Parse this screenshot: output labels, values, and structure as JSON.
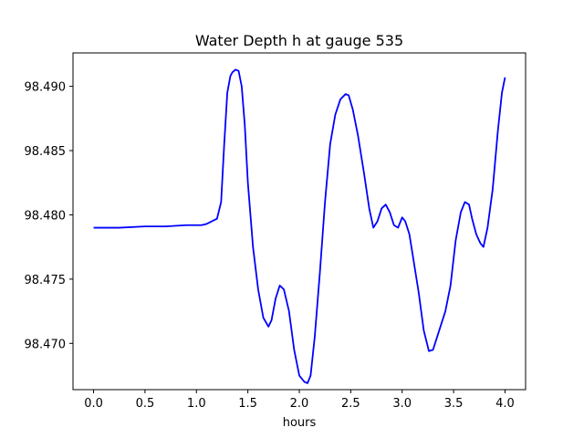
{
  "chart_data": {
    "type": "line",
    "title": "Water Depth h at gauge 535",
    "xlabel": "hours",
    "ylabel": "",
    "xlim": [
      -0.2,
      4.2
    ],
    "ylim": [
      98.4664,
      98.4926
    ],
    "xticks": [
      0.0,
      0.5,
      1.0,
      1.5,
      2.0,
      2.5,
      3.0,
      3.5,
      4.0
    ],
    "xtick_labels": [
      "0.0",
      "0.5",
      "1.0",
      "1.5",
      "2.0",
      "2.5",
      "3.0",
      "3.5",
      "4.0"
    ],
    "yticks": [
      98.47,
      98.475,
      98.48,
      98.485,
      98.49
    ],
    "ytick_labels": [
      "98.470",
      "98.475",
      "98.480",
      "98.485",
      "98.490"
    ],
    "grid": false,
    "series": [
      {
        "color": "#0000ff",
        "x": [
          0.0,
          0.25,
          0.5,
          0.7,
          0.9,
          1.05,
          1.1,
          1.2,
          1.24,
          1.27,
          1.3,
          1.33,
          1.35,
          1.38,
          1.41,
          1.44,
          1.47,
          1.5,
          1.55,
          1.6,
          1.65,
          1.7,
          1.73,
          1.77,
          1.81,
          1.85,
          1.9,
          1.95,
          2.0,
          2.05,
          2.08,
          2.11,
          2.15,
          2.2,
          2.25,
          2.3,
          2.35,
          2.4,
          2.45,
          2.48,
          2.52,
          2.57,
          2.63,
          2.68,
          2.72,
          2.76,
          2.8,
          2.84,
          2.88,
          2.92,
          2.96,
          3.0,
          3.03,
          3.07,
          3.11,
          3.16,
          3.21,
          3.26,
          3.3,
          3.36,
          3.42,
          3.47,
          3.52,
          3.57,
          3.61,
          3.65,
          3.68,
          3.72,
          3.76,
          3.79,
          3.83,
          3.88,
          3.93,
          3.97,
          4.0
        ],
        "values": [
          98.479,
          98.479,
          98.4791,
          98.4791,
          98.4792,
          98.4792,
          98.4793,
          98.4797,
          98.481,
          98.4855,
          98.4895,
          98.4908,
          98.4911,
          98.4913,
          98.4912,
          98.49,
          98.487,
          98.4825,
          98.4775,
          98.4742,
          98.472,
          98.4713,
          98.4718,
          98.4735,
          98.4745,
          98.4742,
          98.4725,
          98.4695,
          98.4675,
          98.467,
          98.4669,
          98.4675,
          98.4705,
          98.4755,
          98.481,
          98.4855,
          98.4878,
          98.489,
          98.4894,
          98.4893,
          98.4882,
          98.4862,
          98.4832,
          98.4805,
          98.479,
          98.4795,
          98.4805,
          98.4808,
          98.4802,
          98.4792,
          98.479,
          98.4798,
          98.4795,
          98.4785,
          98.4765,
          98.474,
          98.471,
          98.4694,
          98.4695,
          98.471,
          98.4725,
          98.4745,
          98.478,
          98.4802,
          98.481,
          98.4808,
          98.4797,
          98.4785,
          98.4778,
          98.4775,
          98.479,
          98.482,
          98.4865,
          98.4895,
          98.4907
        ]
      }
    ]
  }
}
